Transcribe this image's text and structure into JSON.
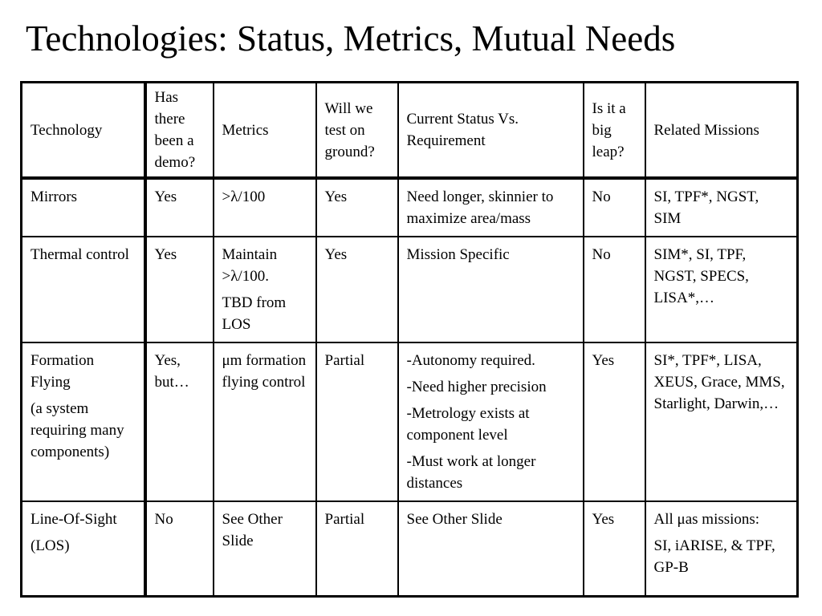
{
  "title": "Technologies: Status, Metrics, Mutual Needs",
  "table": {
    "headers": [
      "Technology",
      "Has there been a demo?",
      "Metrics",
      "Will we test on ground?",
      "Current Status Vs. Requirement",
      "Is it a big leap?",
      "Related Missions"
    ],
    "rows": [
      [
        [
          "Mirrors"
        ],
        [
          "Yes"
        ],
        [
          ">λ/100"
        ],
        [
          "Yes"
        ],
        [
          "Need longer, skinnier to maximize area/mass"
        ],
        [
          "No"
        ],
        [
          "SI, TPF*, NGST, SIM"
        ]
      ],
      [
        [
          "Thermal control"
        ],
        [
          "Yes"
        ],
        [
          "Maintain >λ/100.",
          "TBD from LOS"
        ],
        [
          "Yes"
        ],
        [
          "Mission Specific"
        ],
        [
          "No"
        ],
        [
          "SIM*, SI, TPF, NGST, SPECS, LISA*,…"
        ]
      ],
      [
        [
          "Formation Flying",
          "(a system requiring many components)"
        ],
        [
          "Yes, but…"
        ],
        [
          "μm formation flying control"
        ],
        [
          "Partial"
        ],
        [
          "-Autonomy  required.",
          "-Need higher precision",
          "-Metrology exists at component level",
          "-Must work at longer distances"
        ],
        [
          "Yes"
        ],
        [
          "SI*, TPF*, LISA, XEUS, Grace, MMS, Starlight, Darwin,…"
        ]
      ],
      [
        [
          "Line-Of-Sight",
          "(LOS)"
        ],
        [
          "No"
        ],
        [
          "See Other Slide"
        ],
        [
          "Partial"
        ],
        [
          "See Other Slide"
        ],
        [
          "Yes"
        ],
        [
          "All μas missions:",
          "SI, iARISE, & TPF, GP-B"
        ]
      ]
    ]
  }
}
